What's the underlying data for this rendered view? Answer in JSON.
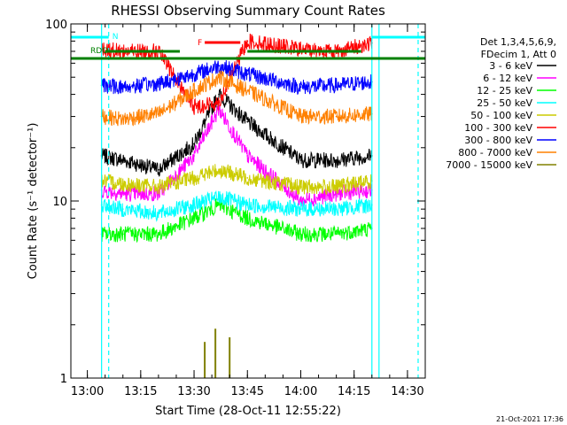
{
  "chart_data": {
    "type": "line",
    "title": "RHESSI Observing Summary Count Rates",
    "xlabel": "Start Time (28-Oct-11 12:55:22)",
    "ylabel": "Count Rate (s⁻¹ detector⁻¹)",
    "y_scale": "log",
    "ylim": [
      1,
      100
    ],
    "xlim": [
      "12:55:22",
      "14:35:00"
    ],
    "x_ticks": [
      "13:00",
      "13:15",
      "13:30",
      "13:45",
      "14:00",
      "14:15",
      "14:30"
    ],
    "y_ticks": [
      "1",
      "10",
      "100"
    ],
    "grid": false,
    "legend_position": "right",
    "legend_header": [
      "Det 1,3,4,5,6,9,",
      "FDecim 1, Att 0"
    ],
    "footer": "21-Oct-2021 17:36",
    "series": [
      {
        "name": "3 - 6 keV",
        "color": "#000000",
        "x": [
          "13:04",
          "13:10",
          "13:20",
          "13:30",
          "13:37",
          "13:45",
          "14:00",
          "14:10",
          "14:20"
        ],
        "y": [
          18,
          17,
          15,
          21,
          40,
          28,
          17,
          17,
          18
        ]
      },
      {
        "name": "6 - 12 keV",
        "color": "#ff00ff",
        "x": [
          "13:04",
          "13:10",
          "13:20",
          "13:30",
          "13:37",
          "13:45",
          "14:00",
          "14:10",
          "14:20"
        ],
        "y": [
          11.5,
          11,
          11,
          18,
          33,
          18,
          10,
          11,
          11.5
        ]
      },
      {
        "name": "12 - 25 keV",
        "color": "#00ff00",
        "x": [
          "13:04",
          "13:10",
          "13:20",
          "13:30",
          "13:37",
          "13:45",
          "14:00",
          "14:10",
          "14:20"
        ],
        "y": [
          6.5,
          6.5,
          6.5,
          8,
          9.5,
          8,
          6.5,
          6.5,
          7
        ]
      },
      {
        "name": "25 - 50 keV",
        "color": "#00ffff",
        "x": [
          "13:04",
          "13:10",
          "13:20",
          "13:30",
          "13:37",
          "13:45",
          "14:00",
          "14:10",
          "14:20"
        ],
        "y": [
          9.5,
          9,
          8.5,
          9.5,
          10.5,
          9.5,
          9,
          9,
          9.5
        ]
      },
      {
        "name": "50 - 100 keV",
        "color": "#cccc00",
        "x": [
          "13:04",
          "13:10",
          "13:20",
          "13:30",
          "13:37",
          "13:45",
          "14:00",
          "14:10",
          "14:20"
        ],
        "y": [
          13,
          12.5,
          12,
          13.5,
          15,
          13.5,
          12,
          12,
          13
        ]
      },
      {
        "name": "100 - 300 keV",
        "color": "#ff0000",
        "x": [
          "13:04",
          "13:10",
          "13:20",
          "13:30",
          "13:37",
          "13:45",
          "14:00",
          "14:10",
          "14:20"
        ],
        "y": [
          72,
          70,
          70,
          34,
          36,
          80,
          72,
          70,
          78
        ]
      },
      {
        "name": "300 - 800 keV",
        "color": "#0000ff",
        "x": [
          "13:04",
          "13:10",
          "13:20",
          "13:30",
          "13:37",
          "13:45",
          "14:00",
          "14:10",
          "14:20"
        ],
        "y": [
          45,
          44,
          46,
          52,
          58,
          52,
          44,
          45,
          47
        ]
      },
      {
        "name": "800 - 7000 keV",
        "color": "#ff8000",
        "x": [
          "13:04",
          "13:10",
          "13:20",
          "13:30",
          "13:37",
          "13:45",
          "14:00",
          "14:10",
          "14:20"
        ],
        "y": [
          30,
          29,
          31,
          42,
          50,
          42,
          30,
          30,
          31
        ]
      },
      {
        "name": "7000 - 15000 keV",
        "color": "#808000",
        "x": [
          "13:33",
          "13:36",
          "13:40"
        ],
        "y": [
          1.6,
          1.9,
          1.7
        ]
      }
    ],
    "annotations": [
      {
        "text": "N",
        "color": "#00ffff"
      },
      {
        "text": "RDO",
        "color": "#008000"
      },
      {
        "text": "F",
        "color": "#ff0000"
      }
    ]
  }
}
